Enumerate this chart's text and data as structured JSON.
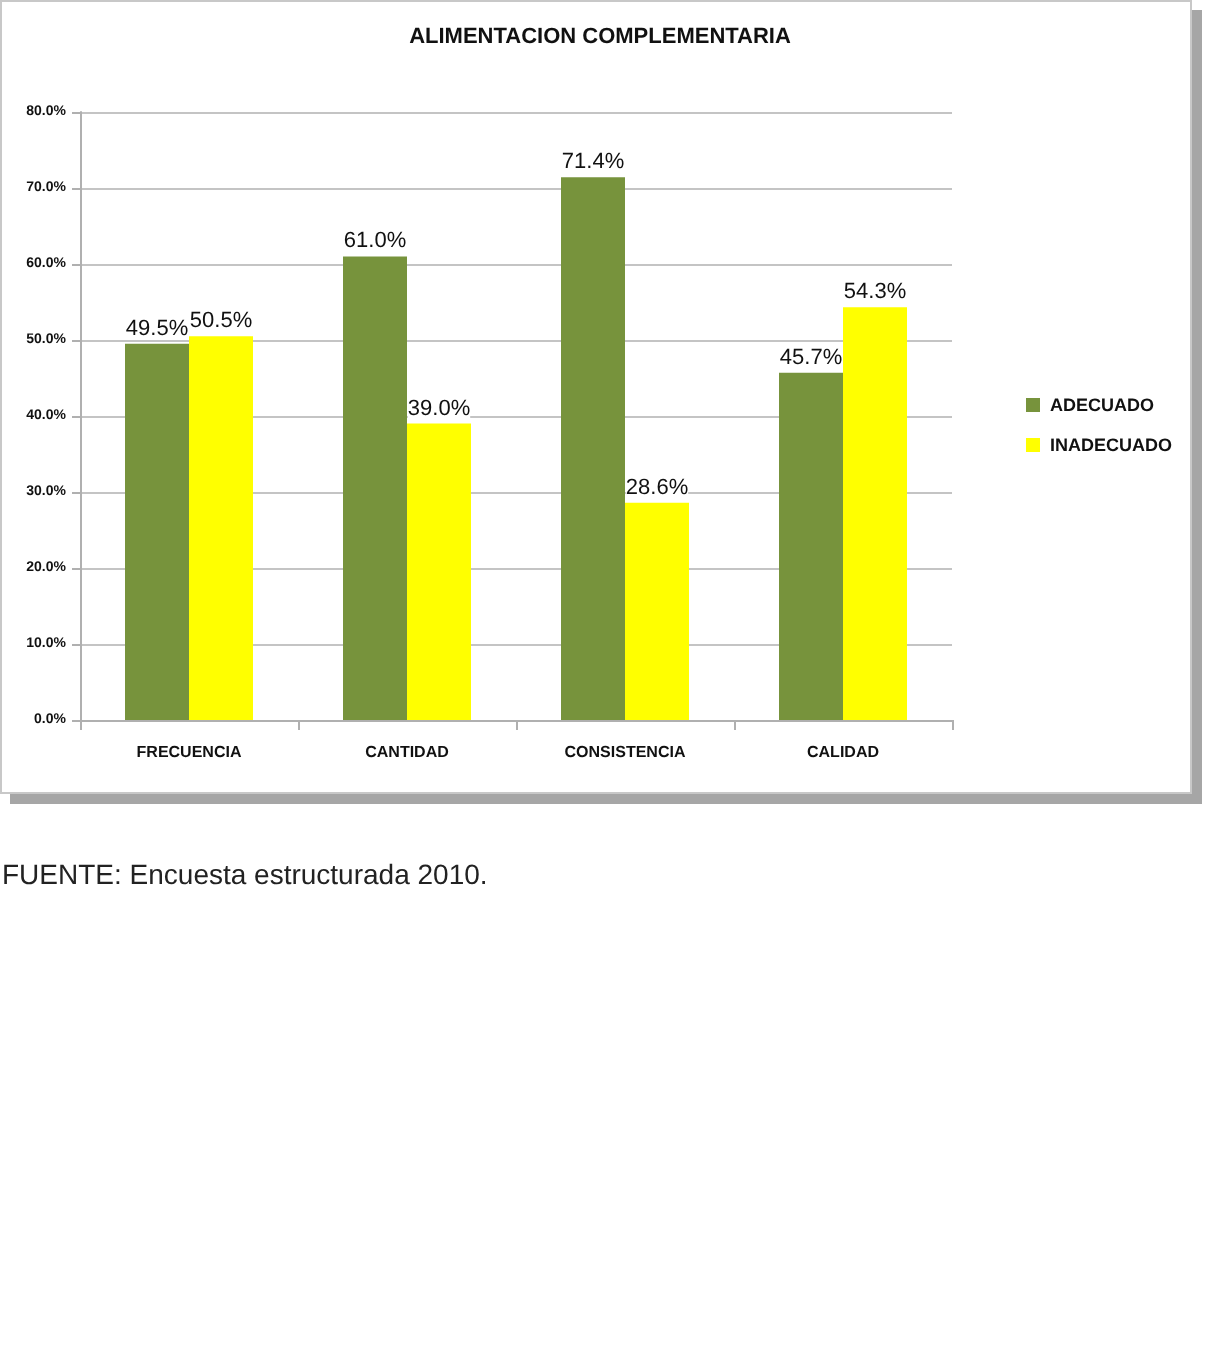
{
  "chart_data": {
    "type": "bar",
    "title": "ALIMENTACION COMPLEMENTARIA",
    "categories": [
      "FRECUENCIA",
      "CANTIDAD",
      "CONSISTENCIA",
      "CALIDAD"
    ],
    "series": [
      {
        "name": "ADECUADO",
        "color": "#77933c",
        "values": [
          49.5,
          61.0,
          71.4,
          45.7
        ],
        "value_labels": [
          "49.5%",
          "61.0%",
          "71.4%",
          "45.7%"
        ]
      },
      {
        "name": "INADECUADO",
        "color": "#ffff00",
        "values": [
          50.5,
          39.0,
          28.6,
          54.3
        ],
        "value_labels": [
          "50.5%",
          "39.0%",
          "28.6%",
          "54.3%"
        ]
      }
    ],
    "ylim": [
      0,
      80
    ],
    "yticks": [
      {
        "value": 0,
        "label": "0.0%"
      },
      {
        "value": 10,
        "label": "10.0%"
      },
      {
        "value": 20,
        "label": "20.0%"
      },
      {
        "value": 30,
        "label": "30.0%"
      },
      {
        "value": 40,
        "label": "40.0%"
      },
      {
        "value": 50,
        "label": "50.0%"
      },
      {
        "value": 60,
        "label": "60.0%"
      },
      {
        "value": 70,
        "label": "70.0%"
      },
      {
        "value": 80,
        "label": "80.0%"
      }
    ],
    "grid": "y",
    "legend": "right",
    "annotations": [
      "FUENTE: Encuesta estructurada 2010."
    ]
  }
}
